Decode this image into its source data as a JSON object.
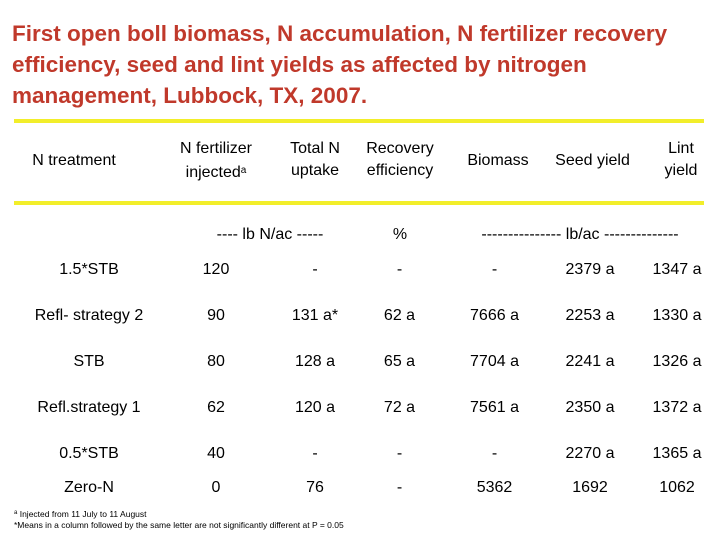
{
  "title": "First open boll biomass, N accumulation, N fertilizer recovery efficiency, seed and lint yields as affected by nitrogen management, Lubbock, TX, 2007.",
  "header": {
    "treatment": "N treatment",
    "fert_line1": "N fertilizer",
    "fert_line2": "injected",
    "fert_sup": "a",
    "totaln_line1": "Total N",
    "totaln_line2": "uptake",
    "recovery_line1": "Recovery",
    "recovery_line2": "efficiency",
    "biomass": "Biomass",
    "seed": "Seed yield",
    "lint_line1": "Lint",
    "lint_line2": "yield"
  },
  "units": {
    "lb_n": "---- lb N/ac -----",
    "percent": "%",
    "lb_ac": "--------------- lb/ac --------------"
  },
  "rows": [
    {
      "treatment": "1.5*STB",
      "fert": "120",
      "totaln": "-",
      "recovery": "-",
      "biomass": "-",
      "seed": "2379 a",
      "lint": "1347 a"
    },
    {
      "treatment": "Refl- strategy 2",
      "fert": "90",
      "totaln": "131 a*",
      "recovery": "62 a",
      "biomass": "7666 a",
      "seed": "2253 a",
      "lint": "1330 a"
    },
    {
      "treatment": "STB",
      "fert": "80",
      "totaln": "128 a",
      "recovery": "65 a",
      "biomass": "7704 a",
      "seed": "2241 a",
      "lint": "1326 a"
    },
    {
      "treatment": "Refl.strategy 1",
      "fert": "62",
      "totaln": "120 a",
      "recovery": "72 a",
      "biomass": "7561 a",
      "seed": "2350 a",
      "lint": "1372 a"
    },
    {
      "treatment": "0.5*STB",
      "fert": "40",
      "totaln": "-",
      "recovery": "-",
      "biomass": "-",
      "seed": "2270 a",
      "lint": "1365 a"
    },
    {
      "treatment": "Zero-N",
      "fert": "0",
      "totaln": "76",
      "recovery": "-",
      "biomass": "5362",
      "seed": "1692",
      "lint": "1062"
    }
  ],
  "footnotes": {
    "a_sup": "a",
    "a": "Injected from 11 July to 11 August",
    "star": "*Means in a column followed by the same letter are not significantly different at P = 0.05"
  },
  "colors": {
    "title": "#c0392b",
    "rule": "#f2ee2a"
  }
}
